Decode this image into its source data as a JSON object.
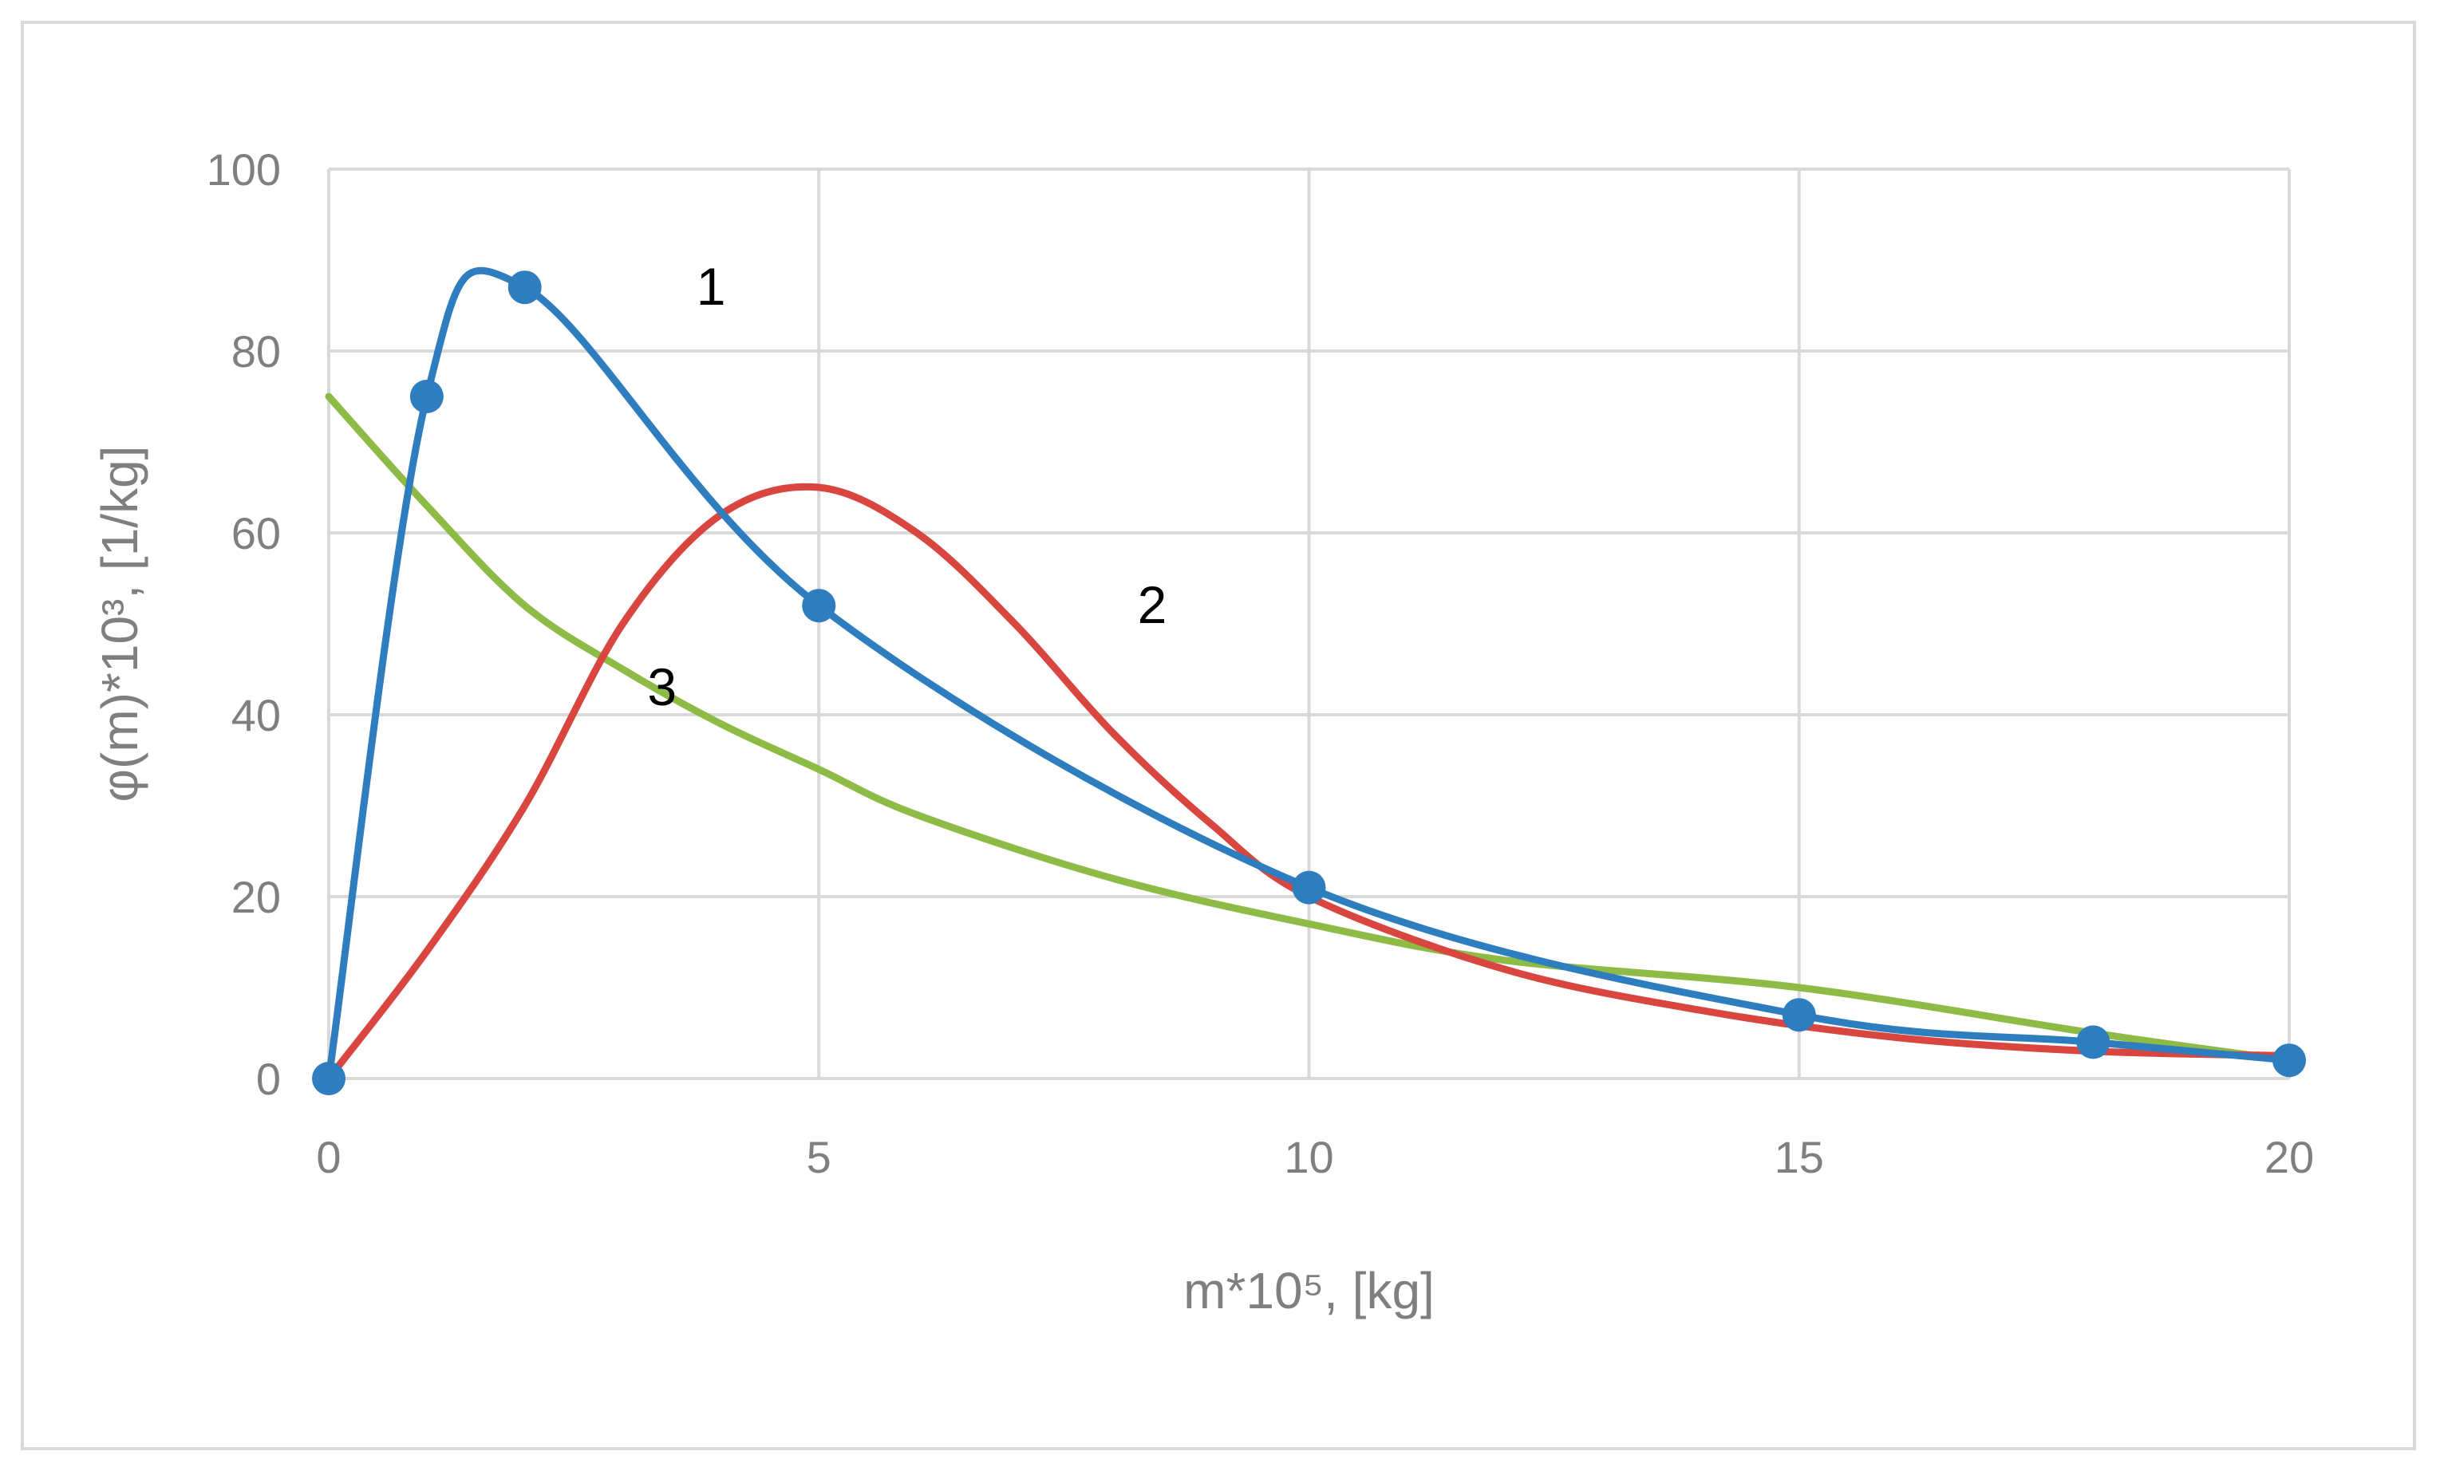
{
  "chart_data": {
    "type": "line",
    "xlabel": "m*10⁵, [kg]",
    "ylabel": "φ(m)*10³, [1/kg]",
    "xlim": [
      0,
      20
    ],
    "ylim": [
      0,
      100
    ],
    "x_ticks": [
      0,
      5,
      10,
      15,
      20
    ],
    "y_ticks": [
      0,
      20,
      40,
      60,
      80,
      100
    ],
    "grid": true,
    "legend": "none",
    "series": [
      {
        "name": "1",
        "color": "#2e7dbf",
        "markers": true,
        "x": [
          0,
          1,
          2,
          5,
          10,
          15,
          18,
          20
        ],
        "y": [
          0,
          75,
          87,
          52,
          21,
          7,
          4,
          2
        ]
      },
      {
        "name": "2",
        "color": "#d9453f",
        "markers": false,
        "x": [
          0,
          1,
          2,
          3,
          4,
          5,
          6,
          7,
          8,
          9,
          10,
          12,
          14,
          16,
          18,
          20
        ],
        "y": [
          0,
          14,
          30,
          50,
          62,
          65,
          60,
          50,
          38,
          28,
          20,
          12,
          7.5,
          4.5,
          3,
          2.5
        ]
      },
      {
        "name": "3",
        "color": "#8dbb46",
        "markers": false,
        "x": [
          0,
          1,
          2,
          3,
          4,
          5,
          6,
          8,
          10,
          12,
          15,
          18,
          20
        ],
        "y": [
          75,
          63,
          52,
          45,
          39,
          34,
          29,
          22,
          17,
          13,
          10,
          5,
          2
        ]
      }
    ],
    "annotations": [
      {
        "text": "1",
        "x": 3.9,
        "y": 87
      },
      {
        "text": "2",
        "x": 8.4,
        "y": 52
      },
      {
        "text": "3",
        "x": 3.4,
        "y": 43
      }
    ]
  }
}
